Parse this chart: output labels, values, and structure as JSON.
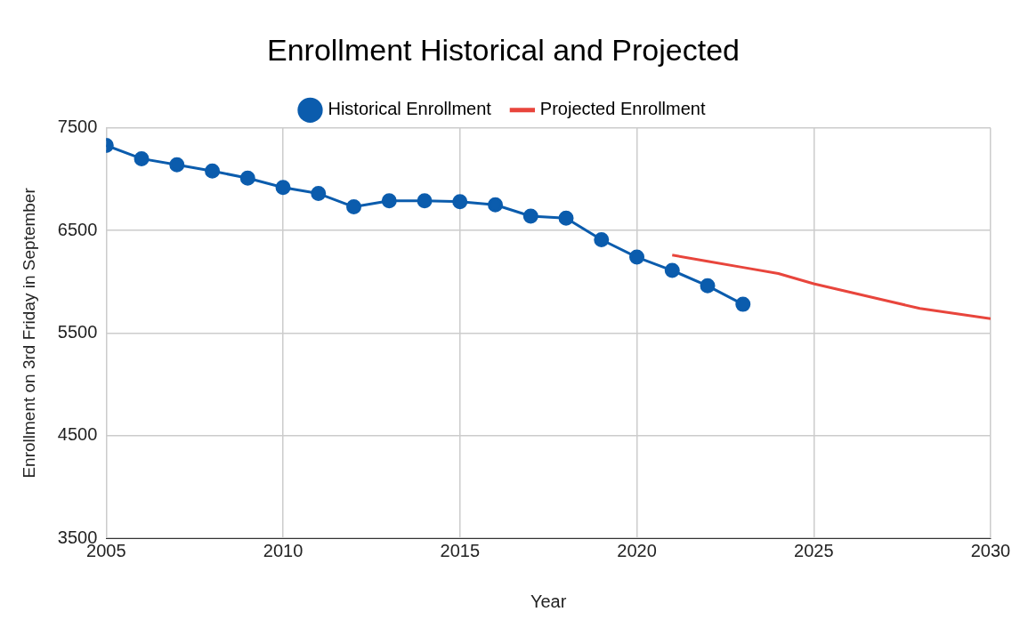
{
  "chart_data": {
    "type": "line",
    "title": "Enrollment Historical and Projected",
    "xlabel": "Year",
    "ylabel": "Enrollment on 3rd Friday in September",
    "xlim": [
      2005,
      2030
    ],
    "xticks": [
      2005,
      2010,
      2015,
      2020,
      2025,
      2030
    ],
    "ylim": [
      3500,
      7500
    ],
    "yticks": [
      3500,
      4500,
      5500,
      6500,
      7500
    ],
    "grid": true,
    "legend": "top",
    "series": [
      {
        "name": "Historical Enrollment",
        "color": "#0b5cad",
        "marker": "circle",
        "x": [
          2005,
          2006,
          2007,
          2008,
          2009,
          2010,
          2011,
          2012,
          2013,
          2014,
          2015,
          2016,
          2017,
          2018,
          2019,
          2020,
          2021,
          2022,
          2023
        ],
        "values": [
          7330,
          7200,
          7140,
          7080,
          7010,
          6920,
          6860,
          6730,
          6790,
          6790,
          6780,
          6750,
          6640,
          6620,
          6410,
          6240,
          6110,
          5960,
          5780
        ]
      },
      {
        "name": "Projected Enrollment",
        "color": "#e8453c",
        "marker": "none",
        "x": [
          2021,
          2022,
          2023,
          2024,
          2025,
          2026,
          2027,
          2028,
          2029,
          2030
        ],
        "values": [
          6260,
          6200,
          6140,
          6080,
          5980,
          5900,
          5820,
          5740,
          5690,
          5640
        ]
      }
    ]
  }
}
